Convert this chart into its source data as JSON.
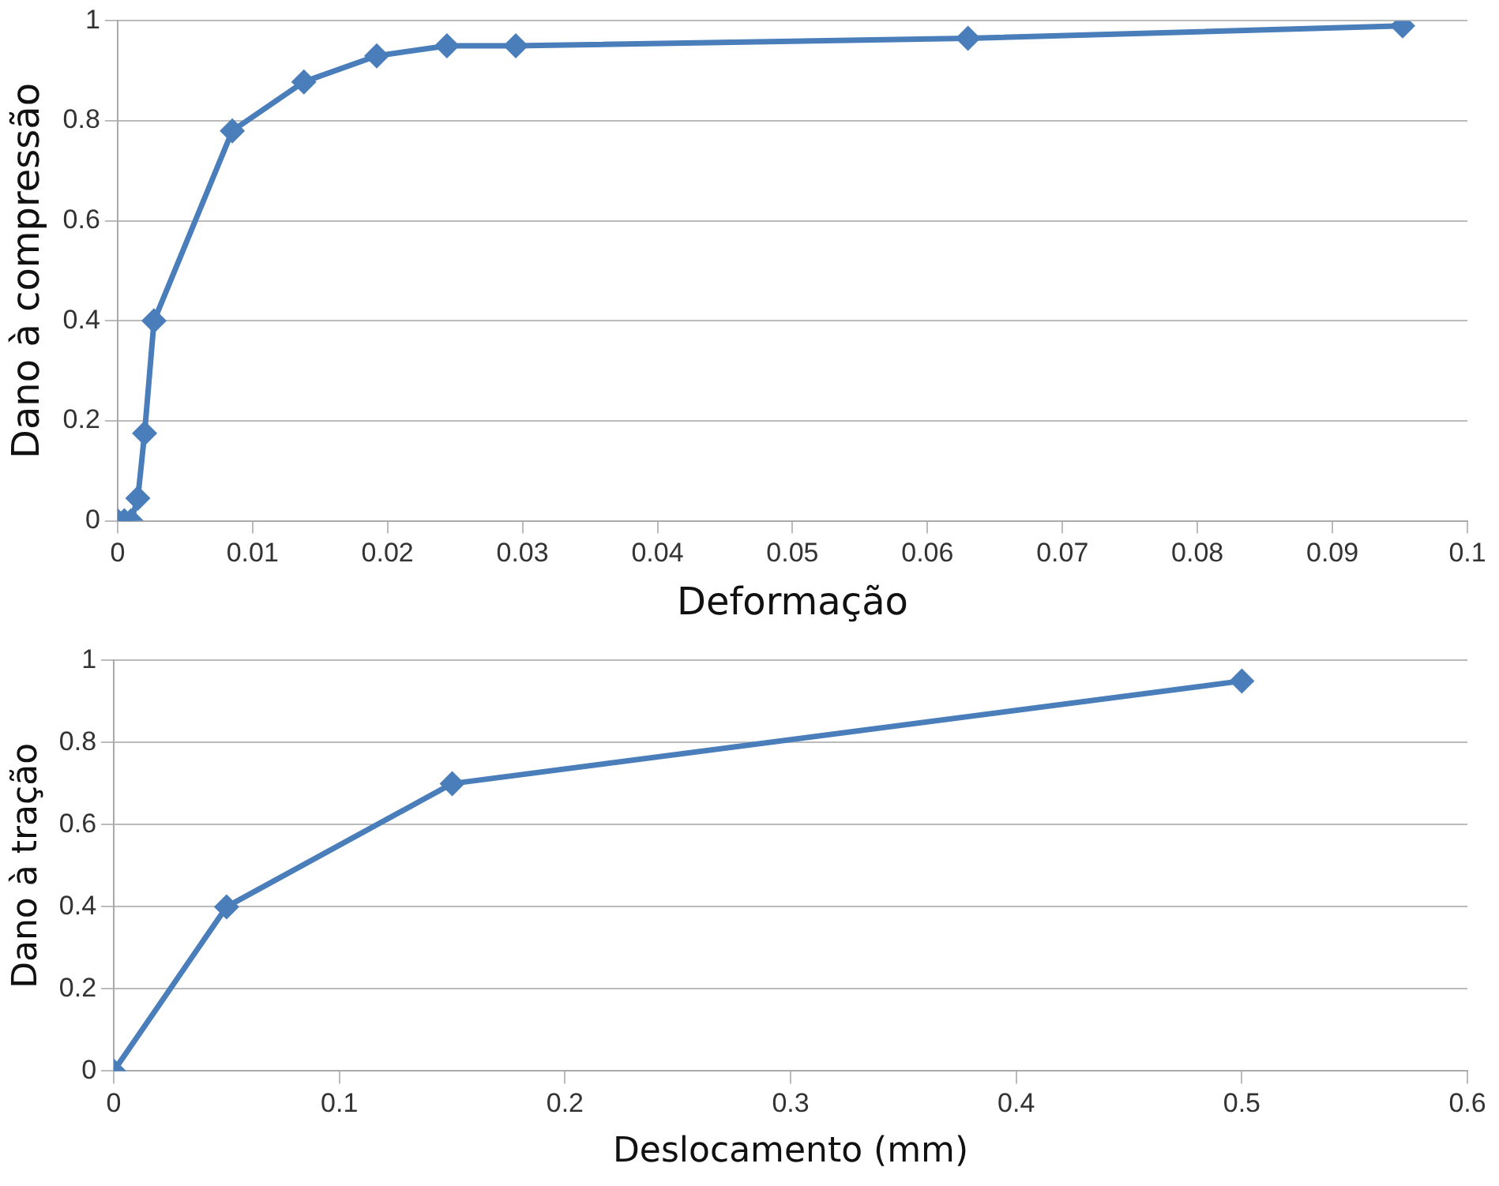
{
  "chart_data": [
    {
      "type": "line",
      "xlabel": "Deformação",
      "ylabel": "Dano à compressão",
      "x": [
        0,
        0.0005,
        0.001,
        0.0015,
        0.002,
        0.0027,
        0.0085,
        0.0138,
        0.0192,
        0.0244,
        0.0295,
        0.063,
        0.0952
      ],
      "values": [
        0,
        0,
        0,
        0.045,
        0.175,
        0.4,
        0.78,
        0.878,
        0.93,
        0.95,
        0.95,
        0.965,
        0.99
      ],
      "color": "#4a7ebb",
      "xlim": [
        0,
        0.1
      ],
      "xticks": [
        0,
        0.01,
        0.02,
        0.03,
        0.04,
        0.05,
        0.06,
        0.07,
        0.08,
        0.09,
        0.1
      ],
      "ylim": [
        0,
        1
      ],
      "yticks": [
        0,
        0.2,
        0.4,
        0.6,
        0.8,
        1
      ],
      "grid": "y",
      "marker": "diamond",
      "line_style": "solid",
      "legend": false
    },
    {
      "type": "line",
      "xlabel": "Deslocamento (mm)",
      "ylabel": "Dano à tração",
      "x": [
        0,
        0.05,
        0.15,
        0.5
      ],
      "values": [
        0,
        0.4,
        0.7,
        0.95
      ],
      "color": "#4a7ebb",
      "xlim": [
        0,
        0.6
      ],
      "xticks": [
        0,
        0.1,
        0.2,
        0.3,
        0.4,
        0.5,
        0.6
      ],
      "ylim": [
        0,
        1
      ],
      "yticks": [
        0,
        0.2,
        0.4,
        0.6,
        0.8,
        1
      ],
      "grid": "y",
      "marker": "diamond",
      "line_style": "solid",
      "legend": false
    }
  ]
}
